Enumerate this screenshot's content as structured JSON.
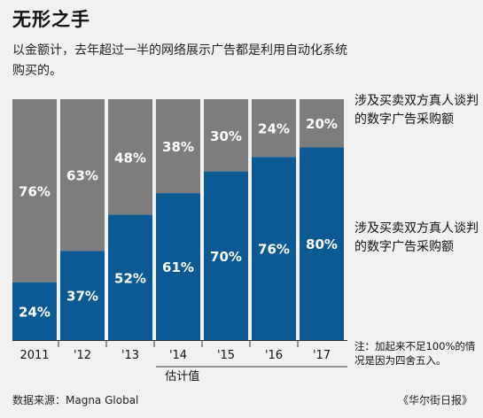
{
  "title": "无形之手",
  "subtitle": "以金额计，去年超过一半的网络展示广告都是利用自动化系统购买的。",
  "legend": {
    "gray": "涉及买卖双方真人谈判的数字广告采购额",
    "blue": "涉及买卖双方真人谈判的数字广告采购额"
  },
  "note": "注：加起来不足100%的情况是因为四舍五入。",
  "source": "数据来源：Magna Global",
  "credit": "《华尔街日报》",
  "estimate_label": "估计值",
  "colors": {
    "gray": "#7d7d7d",
    "blue": "#0b5a93",
    "background": "#f1f1f1"
  },
  "chart_data": {
    "type": "bar",
    "stacked": true,
    "categories": [
      "2011",
      "'12",
      "'13",
      "'14",
      "'15",
      "'16",
      "'17"
    ],
    "series": [
      {
        "color": "blue",
        "values": [
          24,
          37,
          52,
          61,
          70,
          76,
          80
        ],
        "labels": [
          "24%",
          "37%",
          "52%",
          "61%",
          "70%",
          "76%",
          "80%"
        ]
      },
      {
        "color": "gray",
        "values": [
          76,
          63,
          48,
          38,
          30,
          24,
          20
        ],
        "labels": [
          "76%",
          "63%",
          "48%",
          "38%",
          "30%",
          "24%",
          "20%"
        ]
      }
    ],
    "ylim": [
      0,
      100
    ],
    "grid": false,
    "estimate_from_index": 3
  }
}
